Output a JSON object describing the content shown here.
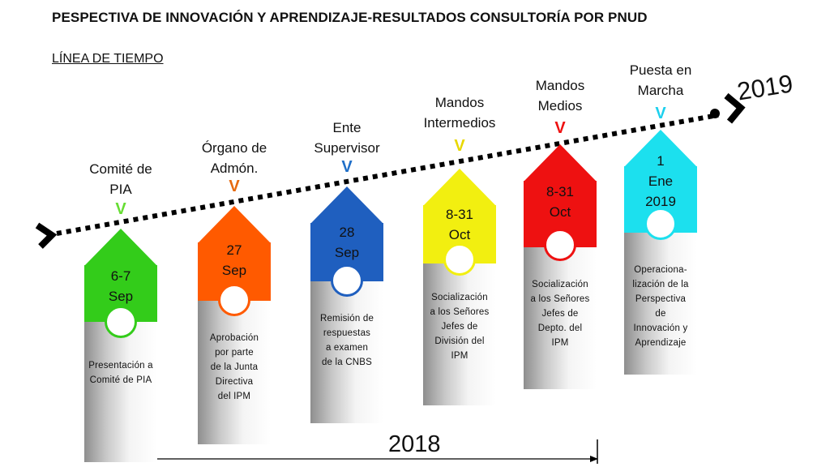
{
  "header": {
    "title": "PESPECTIVA DE INNOVACIÓN Y APRENDIZAJE-RESULTADOS CONSULTORÍA POR PNUD",
    "subtitle": "LÍNEA DE TIEMPO"
  },
  "timeline": {
    "year_start": "2018",
    "year_end": "2019",
    "stages": [
      {
        "label": [
          "Comité de",
          "PIA"
        ],
        "check": "V",
        "date": [
          "6-7",
          "Sep"
        ],
        "desc": [
          "Presentación a",
          "Comité de PIA"
        ],
        "color": "#33cc1a",
        "check_color": "#66dd33"
      },
      {
        "label": [
          "Órgano de",
          "Admón."
        ],
        "check": "V",
        "date": [
          "27",
          "Sep"
        ],
        "desc": [
          "Aprobación",
          "por parte",
          "de la Junta",
          "Directiva",
          "del IPM"
        ],
        "color": "#ff5a00",
        "check_color": "#e66a10"
      },
      {
        "label": [
          "Ente",
          "Supervisor"
        ],
        "check": "V",
        "date": [
          "28",
          "Sep"
        ],
        "desc": [
          "Remisión de",
          "respuestas",
          "a examen",
          "de la CNBS"
        ],
        "color": "#1f5fbf",
        "check_color": "#1f6fc8"
      },
      {
        "label": [
          "Mandos",
          "Intermedios"
        ],
        "check": "V",
        "date": [
          "8-31",
          "Oct"
        ],
        "desc": [
          "Socialización",
          "a los Señores",
          "Jefes de",
          "División del",
          "IPM"
        ],
        "color": "#f2ef10",
        "check_color": "#e8d800"
      },
      {
        "label": [
          "Mandos",
          "Medios"
        ],
        "check": "V",
        "date": [
          "8-31",
          "Oct"
        ],
        "desc": [
          "Socialización",
          "a los Señores",
          "Jefes de",
          "Depto. del",
          "IPM"
        ],
        "color": "#ee1111",
        "check_color": "#ee1111"
      },
      {
        "label": [
          "Puesta en",
          "Marcha"
        ],
        "check": "V",
        "date": [
          "1",
          "Ene",
          "2019"
        ],
        "desc": [
          "Operaciona-",
          "lización de la",
          "Perspectiva",
          "de",
          "Innovación y",
          "Aprendizaje"
        ],
        "color": "#1ce0ee",
        "check_color": "#1cd0ee"
      }
    ]
  }
}
